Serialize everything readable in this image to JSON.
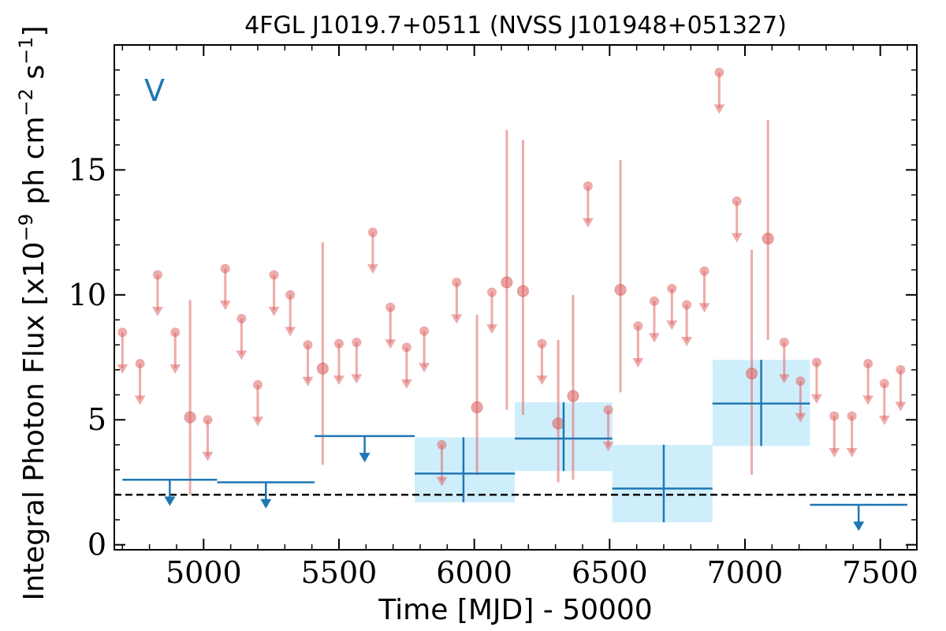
{
  "chart_data": {
    "type": "scatter",
    "title": "4FGL J1019.7+0511 (NVSS J101948+051327)",
    "xlabel": "Time [MJD] - 50000",
    "ylabel": "Integral Photon Flux [x10^-9 ph cm^-2 s^-1]",
    "ylabel_parts": {
      "base": "Integral Photon Flux [x10",
      "exp1": "−9",
      "mid": " ph cm",
      "exp2": "−2",
      "mid2": " s",
      "exp3": "−1",
      "end": "]"
    },
    "annotation": "V",
    "xlim": [
      4670,
      7635
    ],
    "ylim": [
      -0.2,
      20.0
    ],
    "x_ticks": [
      5000,
      5500,
      6000,
      6500,
      7000,
      7500
    ],
    "x_tick_labels": [
      "5000",
      "5500",
      "6000",
      "6500",
      "7000",
      "7500"
    ],
    "y_ticks": [
      0,
      5,
      10,
      15
    ],
    "y_tick_labels": [
      "0",
      "5",
      "10",
      "15"
    ],
    "reference_line_y": 2.0,
    "colors": {
      "fine": "#e06666",
      "coarse": "#1f77b4",
      "band": "#cfeefc",
      "reference": "#000000"
    },
    "series": [
      {
        "kind": "fine_upper_limits",
        "points": [
          [
            4700,
            8.5
          ],
          [
            4765,
            7.25
          ],
          [
            4830,
            10.8
          ],
          [
            4895,
            8.5
          ],
          [
            5015,
            5.0
          ],
          [
            5080,
            11.05
          ],
          [
            5140,
            9.05
          ],
          [
            5200,
            6.4
          ],
          [
            5260,
            10.8
          ],
          [
            5320,
            10.0
          ],
          [
            5385,
            8.0
          ],
          [
            5500,
            8.05
          ],
          [
            5565,
            8.1
          ],
          [
            5625,
            12.5
          ],
          [
            5690,
            9.5
          ],
          [
            5750,
            7.9
          ],
          [
            5815,
            8.55
          ],
          [
            5880,
            4.0
          ],
          [
            5935,
            10.5
          ],
          [
            6065,
            10.1
          ],
          [
            6250,
            8.05
          ],
          [
            6420,
            14.35
          ],
          [
            6495,
            5.4
          ],
          [
            6605,
            8.75
          ],
          [
            6665,
            9.75
          ],
          [
            6730,
            10.25
          ],
          [
            6785,
            9.6
          ],
          [
            6850,
            10.95
          ],
          [
            6905,
            18.9
          ],
          [
            6970,
            13.75
          ],
          [
            7145,
            8.1
          ],
          [
            7205,
            6.55
          ],
          [
            7265,
            7.3
          ],
          [
            7330,
            5.15
          ],
          [
            7395,
            5.15
          ],
          [
            7455,
            7.25
          ],
          [
            7515,
            6.45
          ],
          [
            7575,
            7.0
          ]
        ]
      },
      {
        "kind": "fine_detections",
        "points": [
          {
            "x": 4950,
            "y": 5.1,
            "ylo": 2.0,
            "yhi": 9.8
          },
          {
            "x": 5440,
            "y": 7.05,
            "ylo": 3.2,
            "yhi": 12.1
          },
          {
            "x": 6010,
            "y": 5.5,
            "ylo": 2.8,
            "yhi": 9.2
          },
          {
            "x": 6120,
            "y": 10.5,
            "ylo": 5.4,
            "yhi": 16.6
          },
          {
            "x": 6180,
            "y": 10.15,
            "ylo": 5.2,
            "yhi": 16.2
          },
          {
            "x": 6310,
            "y": 4.85,
            "ylo": 2.5,
            "yhi": 8.2
          },
          {
            "x": 6365,
            "y": 5.95,
            "ylo": 2.6,
            "yhi": 10.0
          },
          {
            "x": 6540,
            "y": 10.2,
            "ylo": 6.1,
            "yhi": 15.4
          },
          {
            "x": 7025,
            "y": 6.85,
            "ylo": 2.8,
            "yhi": 11.8
          },
          {
            "x": 7085,
            "y": 12.25,
            "ylo": 8.2,
            "yhi": 17.0
          }
        ]
      },
      {
        "kind": "coarse_upper_limits",
        "bins": [
          {
            "x0": 4700,
            "x1": 5050,
            "y": 2.6
          },
          {
            "x0": 5050,
            "x1": 5410,
            "y": 2.5
          },
          {
            "x0": 5410,
            "x1": 5780,
            "y": 4.35
          },
          {
            "x0": 7240,
            "x1": 7600,
            "y": 1.6
          }
        ]
      },
      {
        "kind": "coarse_detections",
        "bins": [
          {
            "x0": 5780,
            "x1": 6150,
            "xc": 5960,
            "y": 2.85,
            "ylo": 1.7,
            "yhi": 4.3
          },
          {
            "x0": 6150,
            "x1": 6510,
            "xc": 6330,
            "y": 4.25,
            "ylo": 2.95,
            "yhi": 5.7
          },
          {
            "x0": 6510,
            "x1": 6880,
            "xc": 6700,
            "y": 2.25,
            "ylo": 0.9,
            "yhi": 4.0
          },
          {
            "x0": 6880,
            "x1": 7240,
            "xc": 7060,
            "y": 5.65,
            "ylo": 3.95,
            "yhi": 7.4
          }
        ]
      }
    ]
  }
}
